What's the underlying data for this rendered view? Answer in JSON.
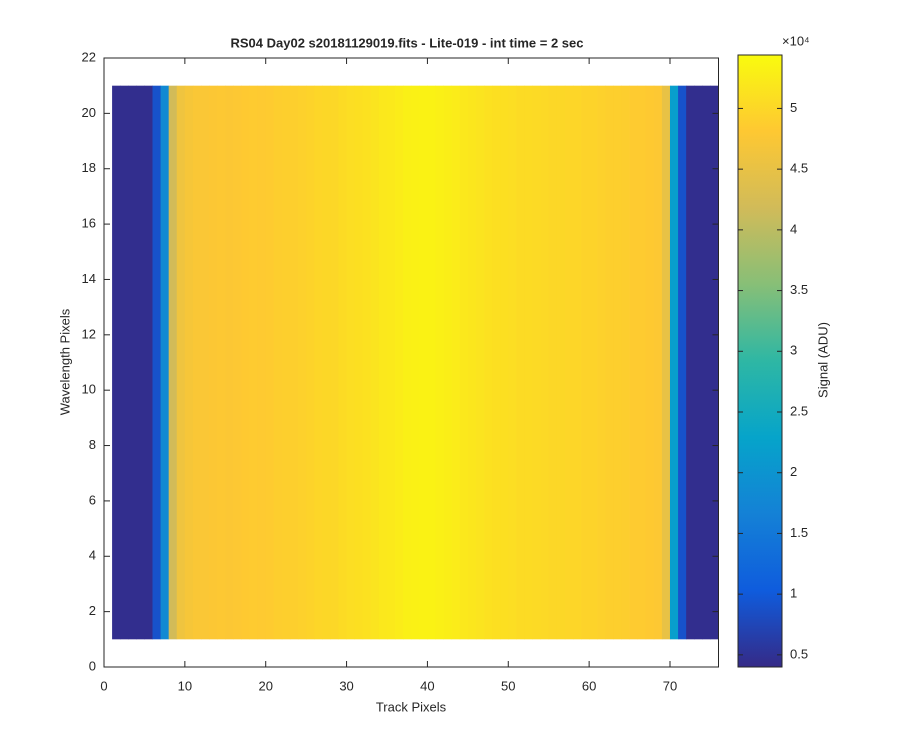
{
  "chart_data": {
    "type": "heatmap",
    "title": "RS04 Day02  s20181129019.fits - Lite-019 - int time = 2 sec",
    "x_label": "Track Pixels",
    "y_label": "Wavelength Pixels",
    "colorbar_label": "Signal (ADU)",
    "colorbar_exponent": "×10⁴",
    "colormap": "parula",
    "x": [
      1,
      2,
      3,
      4,
      5,
      6,
      7,
      8,
      9,
      10,
      11,
      12,
      13,
      14,
      15,
      16,
      17,
      18,
      19,
      20,
      21,
      22,
      23,
      24,
      25,
      26,
      27,
      28,
      29,
      30,
      31,
      32,
      33,
      34,
      35,
      36,
      37,
      38,
      39,
      40,
      41,
      42,
      43,
      44,
      45,
      46,
      47,
      48,
      49,
      50,
      51,
      52,
      53,
      54,
      55,
      56,
      57,
      58,
      59,
      60,
      61,
      62,
      63,
      64,
      65,
      66,
      67,
      68,
      69,
      70,
      71,
      72,
      73,
      74,
      75
    ],
    "y_range": [
      1,
      21
    ],
    "values": [
      0.45,
      0.45,
      0.45,
      0.45,
      0.45,
      0.9,
      1.8,
      4.2,
      4.6,
      4.7,
      4.75,
      4.75,
      4.78,
      4.8,
      4.78,
      4.8,
      4.82,
      4.85,
      4.83,
      4.85,
      4.88,
      4.9,
      4.9,
      4.92,
      4.95,
      4.98,
      5.0,
      5.0,
      5.05,
      5.08,
      5.1,
      5.12,
      5.15,
      5.2,
      5.22,
      5.25,
      5.3,
      5.32,
      5.33,
      5.33,
      5.3,
      5.28,
      5.25,
      5.2,
      5.18,
      5.15,
      5.12,
      5.1,
      5.1,
      5.08,
      5.05,
      5.05,
      5.03,
      5.02,
      5.0,
      5.0,
      4.98,
      4.98,
      4.95,
      4.95,
      4.92,
      4.9,
      4.9,
      4.88,
      4.85,
      4.85,
      4.82,
      4.8,
      4.5,
      2.2,
      0.9,
      0.45,
      0.45,
      0.45,
      0.45
    ],
    "xlim": [
      0,
      76
    ],
    "ylim": [
      0,
      22
    ],
    "xticks": [
      0,
      10,
      20,
      30,
      40,
      50,
      60,
      70
    ],
    "yticks": [
      0,
      2,
      4,
      6,
      8,
      10,
      12,
      14,
      16,
      18,
      20,
      22
    ],
    "clim": [
      0.4,
      5.44
    ],
    "cticks": [
      0.5,
      1,
      1.5,
      2,
      2.5,
      3,
      3.5,
      4,
      4.5,
      5
    ]
  }
}
